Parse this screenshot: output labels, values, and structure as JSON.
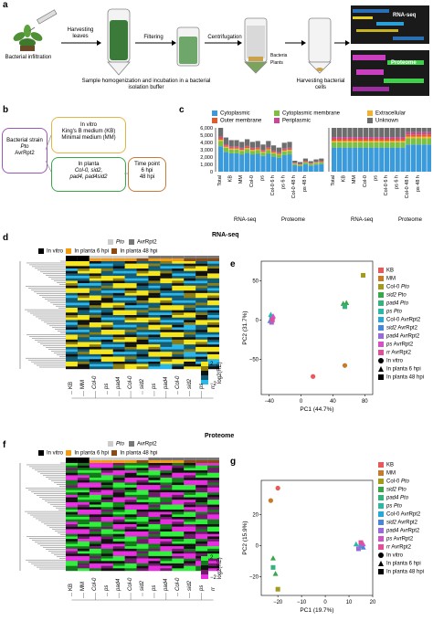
{
  "panel_a": {
    "letter": "a",
    "step1": "Bacterial infiltration",
    "step2": "Harvesting leaves",
    "step3": "Filtering",
    "step4": "Centrifugation",
    "step5": "Harvesting bacterial cells",
    "note": "Sample homogenization and incubation in a bacterial isolation buffer",
    "tube_label_bacteria": "Bacteria",
    "tube_label_plants": "Plants",
    "omics1": "RNA-seq",
    "omics2": "Proteome"
  },
  "panel_b": {
    "letter": "b",
    "strain_title": "Bacterial strain",
    "strain_pto": "Pto",
    "strain_avr": "AvrRpt2",
    "invitro_title": "In vitro",
    "invitro_kb": "King's B medium (KB)",
    "invitro_mm": "Minimal medium (MM)",
    "inplanta_title": "In planta",
    "inplanta_line1": "Col-0, sid2,",
    "inplanta_line2": "pad4, pad4sid2",
    "time_title": "Time point",
    "time_6": "6 hpi",
    "time_48": "48 hpi"
  },
  "panel_c": {
    "letter": "c",
    "legend": [
      {
        "label": "Cytoplasmic",
        "color": "#3b9ad9"
      },
      {
        "label": "Cytoplasmic membrane",
        "color": "#7cc043"
      },
      {
        "label": "Extracellular",
        "color": "#f2b12b"
      },
      {
        "label": "Outer membrane",
        "color": "#e05a2b"
      },
      {
        "label": "Periplasmic",
        "color": "#c8469a"
      },
      {
        "label": "Unknown",
        "color": "#6d6d6d"
      }
    ],
    "ylabels": [
      "6,000",
      "5,000",
      "4,000",
      "3,000",
      "2,000",
      "1,000",
      "0"
    ],
    "xlabels": [
      "Total",
      "KB",
      "MM",
      "Col-0",
      "ps",
      "Col-0 6 h",
      "ps 6 h",
      "Col-0 48 h",
      "ps 48 h"
    ],
    "group1": "RNA-seq",
    "group2": "Proteome"
  },
  "panel_d": {
    "letter": "d",
    "title": "RNA-seq",
    "legend_pto": "Pto",
    "legend_avr": "AvrRpt2",
    "legend_invitro": "In vitro",
    "legend_6h": "In planta 6 hpi",
    "legend_48h": "In planta 48 hpi",
    "scale_max": "2",
    "scale_min": "−2",
    "scale_label": "log2(RE)",
    "cols": [
      "KB",
      "MM",
      "Col-0",
      "ps",
      "pad4",
      "Col-0",
      "sid2",
      "ps",
      "pad4",
      "Col-0",
      "sid2",
      "ps",
      "rr"
    ]
  },
  "panel_e": {
    "letter": "e",
    "xlabel": "PC1 (44.7%)",
    "ylabel": "PC2 (31.7%)",
    "xticks": [
      "−40",
      "0",
      "40",
      "80"
    ],
    "yticks": [
      "50",
      "0",
      "−50"
    ]
  },
  "panel_f": {
    "letter": "f",
    "title": "Proteome",
    "legend_pto": "Pto",
    "legend_avr": "AvrRpt2",
    "legend_invitro": "In vitro",
    "legend_6h": "In planta 6 hpi",
    "legend_48h": "In planta 48 hpi",
    "scale_max": "2",
    "scale_min": "−2",
    "scale_label": "log2(RE)",
    "cols": [
      "KB",
      "MM",
      "Col-0",
      "ps",
      "pad4",
      "Col-0",
      "sid2",
      "ps",
      "pad4",
      "Col-0",
      "sid2",
      "ps",
      "rr"
    ]
  },
  "panel_g": {
    "letter": "g",
    "xlabel": "PC1 (19.7%)",
    "ylabel": "PC2 (15.9%)",
    "xticks": [
      "−20",
      "−10",
      "0",
      "10",
      "20"
    ],
    "yticks": [
      "20",
      "0",
      "−20"
    ]
  },
  "pca_legend": [
    {
      "label": "KB",
      "color": "#e85a5a",
      "shape": "square"
    },
    {
      "label": "MM",
      "color": "#c77a2a",
      "shape": "square"
    },
    {
      "label": "Col-0 Pto",
      "color": "#a29a1a",
      "shape": "square"
    },
    {
      "label": "sid2 Pto",
      "color": "#3aa64a",
      "shape": "square"
    },
    {
      "label": "pad4 Pto",
      "color": "#35b27e",
      "shape": "square"
    },
    {
      "label": "ps Pto",
      "color": "#2cb8a4",
      "shape": "square"
    },
    {
      "label": "Col-0 AvrRpt2",
      "color": "#29a8d8",
      "shape": "square"
    },
    {
      "label": "sid2 AvrRpt2",
      "color": "#4a86d8",
      "shape": "square"
    },
    {
      "label": "pad4 AvrRpt2",
      "color": "#9a6ad8",
      "shape": "square"
    },
    {
      "label": "ps AvrRpt2",
      "color": "#d254c4",
      "shape": "square"
    },
    {
      "label": "rr AvrRpt2",
      "color": "#e04f9a",
      "shape": "square"
    },
    {
      "label": "In vitro",
      "color": "#000000",
      "shape": "circle"
    },
    {
      "label": "In planta 6 hpi",
      "color": "#000000",
      "shape": "triangle"
    },
    {
      "label": "In planta 48 hpi",
      "color": "#000000",
      "shape": "square"
    }
  ],
  "pca_legend_g_last": "In planta 48 hpi",
  "chart_data": [
    {
      "type": "scatter",
      "title": "",
      "xlabel": "PC1 (44.7%)",
      "ylabel": "PC2 (31.7%)",
      "xlim": [
        -50,
        90
      ],
      "ylim": [
        -95,
        75
      ],
      "series": [
        {
          "name": "KB",
          "points": [
            [
              15,
              -72
            ]
          ]
        },
        {
          "name": "MM",
          "points": [
            [
              55,
              -58
            ]
          ]
        },
        {
          "name": "Col-0 Pto",
          "points": [
            [
              78,
              57
            ]
          ]
        },
        {
          "name": "sid2 Pto",
          "points": [
            [
              53,
              21
            ],
            [
              57,
              22
            ]
          ]
        },
        {
          "name": "pad4 Pto",
          "points": [
            [
              55,
              17
            ]
          ]
        },
        {
          "name": "ps Pto",
          "points": [
            [
              -38,
              7
            ],
            [
              -36,
              4
            ]
          ]
        },
        {
          "name": "Col-0 AvrRpt2",
          "points": [
            [
              -37,
              2
            ]
          ]
        },
        {
          "name": "sid2 AvrRpt2",
          "points": [
            [
              -39,
              -1
            ]
          ]
        },
        {
          "name": "pad4 AvrRpt2",
          "points": [
            [
              -37,
              -3
            ]
          ]
        },
        {
          "name": "ps AvrRpt2",
          "points": [
            [
              -35,
              5
            ]
          ]
        },
        {
          "name": "rr AvrRpt2",
          "points": [
            [
              -36,
              0
            ]
          ]
        }
      ]
    },
    {
      "type": "scatter",
      "title": "",
      "xlabel": "PC1 (19.7%)",
      "ylabel": "PC2 (15.9%)",
      "xlim": [
        -27,
        20
      ],
      "ylim": [
        -32,
        42
      ],
      "series": [
        {
          "name": "KB",
          "points": [
            [
              -20,
              37
            ]
          ]
        },
        {
          "name": "MM",
          "points": [
            [
              -23,
              29
            ]
          ]
        },
        {
          "name": "Col-0 Pto",
          "points": [
            [
              -20,
              -28
            ]
          ]
        },
        {
          "name": "sid2 Pto",
          "points": [
            [
              -22,
              -8
            ],
            [
              -21,
              -18
            ]
          ]
        },
        {
          "name": "pad4 Pto",
          "points": [
            [
              -22,
              -14
            ]
          ]
        },
        {
          "name": "ps Pto",
          "points": [
            [
              13,
              1
            ]
          ]
        },
        {
          "name": "Col-0 AvrRpt2",
          "points": [
            [
              15,
              0
            ]
          ]
        },
        {
          "name": "sid2 AvrRpt2",
          "points": [
            [
              16,
              -1
            ]
          ]
        },
        {
          "name": "pad4 AvrRpt2",
          "points": [
            [
              14,
              -2
            ]
          ]
        },
        {
          "name": "ps AvrRpt2",
          "points": [
            [
              16,
              1
            ]
          ]
        },
        {
          "name": "rr AvrRpt2",
          "points": [
            [
              15,
              2
            ]
          ]
        }
      ]
    }
  ]
}
